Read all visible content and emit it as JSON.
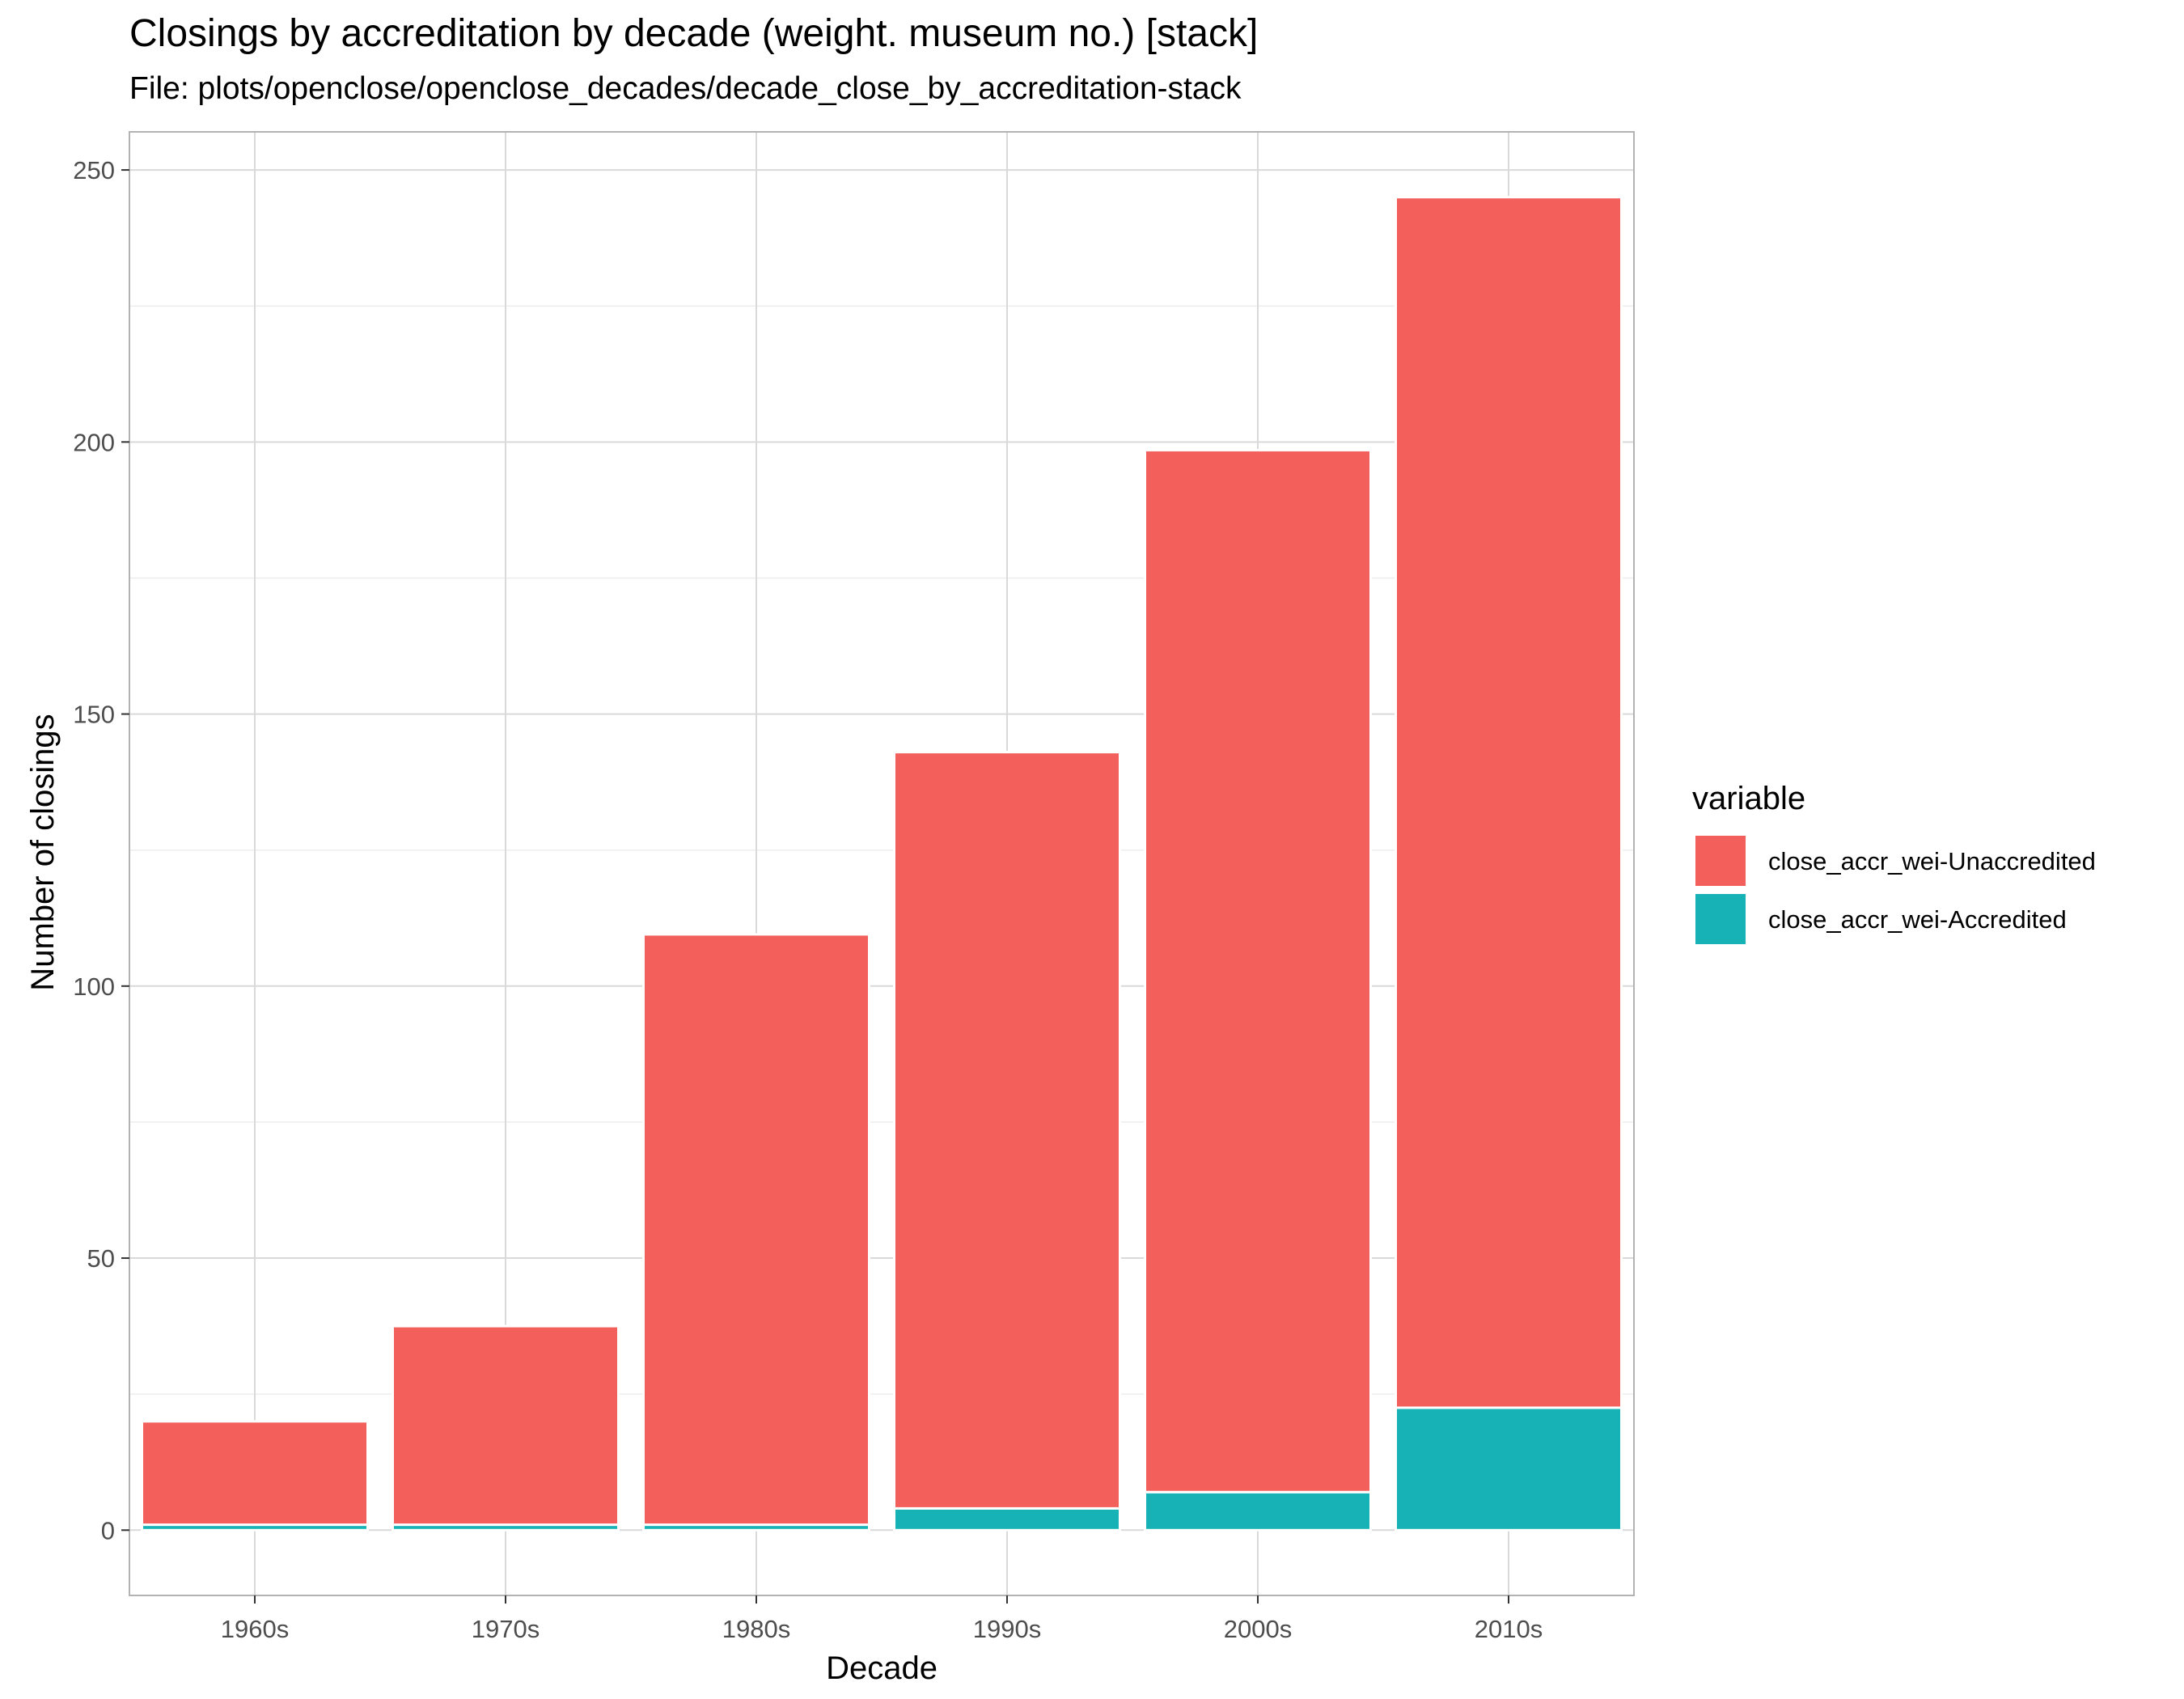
{
  "header": {
    "title": "Closings by accreditation by decade (weight. museum no.) [stack]",
    "subtitle": "File: plots/openclose/openclose_decades/decade_close_by_accreditation-stack"
  },
  "colors": {
    "unaccredited": "#F35F5B",
    "accredited": "#17B2B5",
    "grid_major": "#D9D9D9",
    "grid_minor": "#EDEDED",
    "panel_border": "#B3B3B3"
  },
  "chart_data": {
    "type": "bar",
    "stacked": true,
    "categories": [
      "1960s",
      "1970s",
      "1980s",
      "1990s",
      "2000s",
      "2010s"
    ],
    "series": [
      {
        "name": "close_accr_wei-Accredited",
        "values": [
          1,
          1,
          1,
          4,
          7,
          22.5
        ]
      },
      {
        "name": "close_accr_wei-Unaccredited",
        "values": [
          19,
          36.5,
          108.5,
          139,
          191.5,
          222.5
        ]
      }
    ],
    "xlabel": "Decade",
    "ylabel": "Number of closings",
    "ylim": [
      -12,
      257
    ],
    "yticks": [
      0,
      50,
      100,
      150,
      200,
      250
    ],
    "grid": true,
    "legend": {
      "title": "variable",
      "position": "right",
      "order": [
        "close_accr_wei-Unaccredited",
        "close_accr_wei-Accredited"
      ]
    }
  }
}
